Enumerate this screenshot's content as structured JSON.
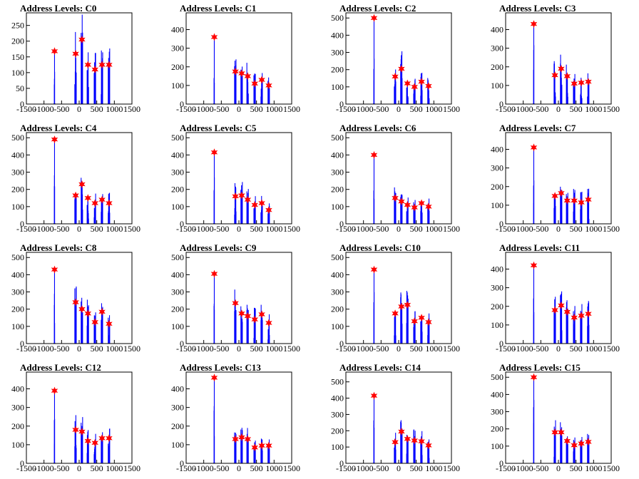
{
  "colors": {
    "histogram": "#0000ff",
    "peak_marker": "#ff0000",
    "axis": "#000000"
  },
  "chart_data": [
    {
      "type": "bar",
      "title": "Address Levels: C0",
      "xlim": [
        -1500,
        1500
      ],
      "ylim": [
        0,
        290
      ],
      "yticks": [
        0,
        50,
        100,
        150,
        200,
        250
      ],
      "xticks": [
        -1500,
        -1000,
        -500,
        0,
        500,
        1000,
        1500
      ],
      "tick_labels": [
        "-1500",
        "-1000",
        "-500",
        "0",
        "500",
        "1000",
        "1500"
      ],
      "peaks": [
        {
          "x": -700,
          "y": 168
        },
        {
          "x": -100,
          "y": 160
        },
        {
          "x": 80,
          "y": 205
        },
        {
          "x": 250,
          "y": 125
        },
        {
          "x": 450,
          "y": 110
        },
        {
          "x": 650,
          "y": 125
        },
        {
          "x": 850,
          "y": 125
        }
      ]
    },
    {
      "type": "bar",
      "title": "Address Levels: C1",
      "xlim": [
        -1500,
        1500
      ],
      "ylim": [
        0,
        490
      ],
      "yticks": [
        0,
        100,
        200,
        300,
        400
      ],
      "xticks": [
        -1500,
        -1000,
        -500,
        0,
        500,
        1000,
        1500
      ],
      "tick_labels": [
        "-1500",
        "-1000",
        "-500",
        "0",
        "500",
        "1000",
        "1500"
      ],
      "peaks": [
        {
          "x": -700,
          "y": 360
        },
        {
          "x": -100,
          "y": 175
        },
        {
          "x": 80,
          "y": 165
        },
        {
          "x": 250,
          "y": 150
        },
        {
          "x": 450,
          "y": 110
        },
        {
          "x": 650,
          "y": 130
        },
        {
          "x": 850,
          "y": 100
        }
      ]
    },
    {
      "type": "bar",
      "title": "Address Levels: C2",
      "xlim": [
        -1500,
        1500
      ],
      "ylim": [
        0,
        530
      ],
      "yticks": [
        0,
        100,
        200,
        300,
        400,
        500
      ],
      "xticks": [
        -1500,
        -1000,
        -500,
        0,
        500,
        1000,
        1500
      ],
      "tick_labels": [
        "-1500",
        "-1000",
        "-500",
        "0",
        "500",
        "1000",
        "1500"
      ],
      "peaks": [
        {
          "x": -700,
          "y": 500
        },
        {
          "x": -100,
          "y": 160
        },
        {
          "x": 80,
          "y": 205
        },
        {
          "x": 250,
          "y": 120
        },
        {
          "x": 450,
          "y": 100
        },
        {
          "x": 650,
          "y": 130
        },
        {
          "x": 850,
          "y": 105
        }
      ]
    },
    {
      "type": "bar",
      "title": "Address Levels: C3",
      "xlim": [
        -1500,
        1500
      ],
      "ylim": [
        0,
        490
      ],
      "yticks": [
        0,
        100,
        200,
        300,
        400
      ],
      "xticks": [
        -1500,
        -1000,
        -500,
        0,
        500,
        1000,
        1500
      ],
      "tick_labels": [
        "-1500",
        "-1000",
        "-500",
        "0",
        "500",
        "1000",
        "1500"
      ],
      "peaks": [
        {
          "x": -700,
          "y": 430
        },
        {
          "x": -100,
          "y": 155
        },
        {
          "x": 80,
          "y": 190
        },
        {
          "x": 250,
          "y": 150
        },
        {
          "x": 450,
          "y": 110
        },
        {
          "x": 650,
          "y": 115
        },
        {
          "x": 850,
          "y": 120
        }
      ]
    },
    {
      "type": "bar",
      "title": "Address Levels: C4",
      "xlim": [
        -1500,
        1500
      ],
      "ylim": [
        0,
        530
      ],
      "yticks": [
        0,
        100,
        200,
        300,
        400,
        500
      ],
      "xticks": [
        -1500,
        -1000,
        -500,
        0,
        500,
        1000,
        1500
      ],
      "tick_labels": [
        "-1500",
        "-1000",
        "-500",
        "0",
        "500",
        "1000",
        "1500"
      ],
      "peaks": [
        {
          "x": -700,
          "y": 490
        },
        {
          "x": -100,
          "y": 165
        },
        {
          "x": 80,
          "y": 230
        },
        {
          "x": 250,
          "y": 150
        },
        {
          "x": 450,
          "y": 120
        },
        {
          "x": 650,
          "y": 140
        },
        {
          "x": 850,
          "y": 120
        }
      ]
    },
    {
      "type": "bar",
      "title": "Address Levels: C5",
      "xlim": [
        -1500,
        1500
      ],
      "ylim": [
        0,
        530
      ],
      "yticks": [
        0,
        100,
        200,
        300,
        400,
        500
      ],
      "xticks": [
        -1500,
        -1000,
        -500,
        0,
        500,
        1000,
        1500
      ],
      "tick_labels": [
        "-1500",
        "-1000",
        "-500",
        "0",
        "500",
        "1000",
        "1500"
      ],
      "peaks": [
        {
          "x": -700,
          "y": 415
        },
        {
          "x": -100,
          "y": 160
        },
        {
          "x": 80,
          "y": 165
        },
        {
          "x": 250,
          "y": 140
        },
        {
          "x": 450,
          "y": 110
        },
        {
          "x": 650,
          "y": 120
        },
        {
          "x": 850,
          "y": 80
        }
      ]
    },
    {
      "type": "bar",
      "title": "Address Levels: C6",
      "xlim": [
        -1500,
        1500
      ],
      "ylim": [
        0,
        530
      ],
      "yticks": [
        0,
        100,
        200,
        300,
        400,
        500
      ],
      "xticks": [
        -1500,
        -1000,
        -500,
        0,
        500,
        1000,
        1500
      ],
      "tick_labels": [
        "-1500",
        "-1000",
        "-500",
        "0",
        "500",
        "1000",
        "1500"
      ],
      "peaks": [
        {
          "x": -700,
          "y": 400
        },
        {
          "x": -100,
          "y": 150
        },
        {
          "x": 80,
          "y": 130
        },
        {
          "x": 250,
          "y": 110
        },
        {
          "x": 450,
          "y": 95
        },
        {
          "x": 650,
          "y": 120
        },
        {
          "x": 850,
          "y": 100
        }
      ]
    },
    {
      "type": "bar",
      "title": "Address Levels: C7",
      "xlim": [
        -1500,
        1500
      ],
      "ylim": [
        0,
        490
      ],
      "yticks": [
        0,
        100,
        200,
        300,
        400
      ],
      "xticks": [
        -1500,
        -1000,
        -500,
        0,
        500,
        1000,
        1500
      ],
      "tick_labels": [
        "-1500",
        "-1000",
        "-500",
        "0",
        "500",
        "1000",
        "1500"
      ],
      "peaks": [
        {
          "x": -700,
          "y": 410
        },
        {
          "x": -100,
          "y": 150
        },
        {
          "x": 80,
          "y": 165
        },
        {
          "x": 250,
          "y": 125
        },
        {
          "x": 450,
          "y": 125
        },
        {
          "x": 650,
          "y": 115
        },
        {
          "x": 850,
          "y": 130
        }
      ]
    },
    {
      "type": "bar",
      "title": "Address Levels: C8",
      "xlim": [
        -1500,
        1500
      ],
      "ylim": [
        0,
        530
      ],
      "yticks": [
        0,
        100,
        200,
        300,
        400,
        500
      ],
      "xticks": [
        -1500,
        -1000,
        -500,
        0,
        500,
        1000,
        1500
      ],
      "tick_labels": [
        "-1500",
        "-1000",
        "-500",
        "0",
        "500",
        "1000",
        "1500"
      ],
      "peaks": [
        {
          "x": -700,
          "y": 430
        },
        {
          "x": -100,
          "y": 240
        },
        {
          "x": 80,
          "y": 200
        },
        {
          "x": 250,
          "y": 175
        },
        {
          "x": 450,
          "y": 125
        },
        {
          "x": 650,
          "y": 185
        },
        {
          "x": 850,
          "y": 115
        }
      ]
    },
    {
      "type": "bar",
      "title": "Address Levels: C9",
      "xlim": [
        -1500,
        1500
      ],
      "ylim": [
        0,
        530
      ],
      "yticks": [
        0,
        100,
        200,
        300,
        400,
        500
      ],
      "xticks": [
        -1500,
        -1000,
        -500,
        0,
        500,
        1000,
        1500
      ],
      "tick_labels": [
        "-1500",
        "-1000",
        "-500",
        "0",
        "500",
        "1000",
        "1500"
      ],
      "peaks": [
        {
          "x": -700,
          "y": 405
        },
        {
          "x": -100,
          "y": 235
        },
        {
          "x": 80,
          "y": 175
        },
        {
          "x": 250,
          "y": 160
        },
        {
          "x": 450,
          "y": 140
        },
        {
          "x": 650,
          "y": 170
        },
        {
          "x": 850,
          "y": 120
        }
      ]
    },
    {
      "type": "bar",
      "title": "Address Levels: C10",
      "xlim": [
        -1500,
        1500
      ],
      "ylim": [
        0,
        530
      ],
      "yticks": [
        0,
        100,
        200,
        300,
        400,
        500
      ],
      "xticks": [
        -1500,
        -1000,
        -500,
        0,
        500,
        1000,
        1500
      ],
      "tick_labels": [
        "-1500",
        "-1000",
        "-500",
        "0",
        "500",
        "1000",
        "1500"
      ],
      "peaks": [
        {
          "x": -700,
          "y": 430
        },
        {
          "x": -100,
          "y": 175
        },
        {
          "x": 80,
          "y": 215
        },
        {
          "x": 250,
          "y": 225
        },
        {
          "x": 450,
          "y": 130
        },
        {
          "x": 650,
          "y": 150
        },
        {
          "x": 850,
          "y": 125
        }
      ]
    },
    {
      "type": "bar",
      "title": "Address Levels: C11",
      "xlim": [
        -1500,
        1500
      ],
      "ylim": [
        0,
        490
      ],
      "yticks": [
        0,
        100,
        200,
        300,
        400
      ],
      "xticks": [
        -1500,
        -1000,
        -500,
        0,
        500,
        1000,
        1500
      ],
      "tick_labels": [
        "-1500",
        "-1000",
        "-500",
        "0",
        "500",
        "1000",
        "1500"
      ],
      "peaks": [
        {
          "x": -700,
          "y": 420
        },
        {
          "x": -100,
          "y": 180
        },
        {
          "x": 80,
          "y": 205
        },
        {
          "x": 250,
          "y": 170
        },
        {
          "x": 450,
          "y": 140
        },
        {
          "x": 650,
          "y": 150
        },
        {
          "x": 850,
          "y": 160
        }
      ]
    },
    {
      "type": "bar",
      "title": "Address Levels: C12",
      "xlim": [
        -1500,
        1500
      ],
      "ylim": [
        0,
        490
      ],
      "yticks": [
        0,
        100,
        200,
        300,
        400
      ],
      "xticks": [
        -1500,
        -1000,
        -500,
        0,
        500,
        1000,
        1500
      ],
      "tick_labels": [
        "-1500",
        "-1000",
        "-500",
        "0",
        "500",
        "1000",
        "1500"
      ],
      "peaks": [
        {
          "x": -700,
          "y": 390
        },
        {
          "x": -100,
          "y": 180
        },
        {
          "x": 80,
          "y": 170
        },
        {
          "x": 250,
          "y": 120
        },
        {
          "x": 450,
          "y": 110
        },
        {
          "x": 650,
          "y": 135
        },
        {
          "x": 850,
          "y": 135
        }
      ]
    },
    {
      "type": "bar",
      "title": "Address Levels: C13",
      "xlim": [
        -1500,
        1500
      ],
      "ylim": [
        0,
        490
      ],
      "yticks": [
        0,
        100,
        200,
        300,
        400
      ],
      "xticks": [
        -1500,
        -1000,
        -500,
        0,
        500,
        1000,
        1500
      ],
      "tick_labels": [
        "-1500",
        "-1000",
        "-500",
        "0",
        "500",
        "1000",
        "1500"
      ],
      "peaks": [
        {
          "x": -700,
          "y": 460
        },
        {
          "x": -100,
          "y": 130
        },
        {
          "x": 80,
          "y": 140
        },
        {
          "x": 250,
          "y": 130
        },
        {
          "x": 450,
          "y": 85
        },
        {
          "x": 650,
          "y": 95
        },
        {
          "x": 850,
          "y": 95
        }
      ]
    },
    {
      "type": "bar",
      "title": "Address Levels: C14",
      "xlim": [
        -1500,
        1500
      ],
      "ylim": [
        0,
        560
      ],
      "yticks": [
        0,
        100,
        200,
        300,
        400,
        500
      ],
      "xticks": [
        -1500,
        -1000,
        -500,
        0,
        500,
        1000,
        1500
      ],
      "tick_labels": [
        "-1500",
        "-1000",
        "-500",
        "0",
        "500",
        "1000",
        "1500"
      ],
      "peaks": [
        {
          "x": -700,
          "y": 415
        },
        {
          "x": -100,
          "y": 130
        },
        {
          "x": 80,
          "y": 195
        },
        {
          "x": 250,
          "y": 150
        },
        {
          "x": 450,
          "y": 140
        },
        {
          "x": 650,
          "y": 135
        },
        {
          "x": 850,
          "y": 110
        }
      ]
    },
    {
      "type": "bar",
      "title": "Address Levels: C15",
      "xlim": [
        -1500,
        1500
      ],
      "ylim": [
        0,
        530
      ],
      "yticks": [
        0,
        100,
        200,
        300,
        400,
        500
      ],
      "xticks": [
        -1500,
        -1000,
        -500,
        0,
        500,
        1000,
        1500
      ],
      "tick_labels": [
        "-1500",
        "-1000",
        "-500",
        "0",
        "500",
        "1000",
        "1500"
      ],
      "peaks": [
        {
          "x": -700,
          "y": 500
        },
        {
          "x": -100,
          "y": 180
        },
        {
          "x": 80,
          "y": 180
        },
        {
          "x": 250,
          "y": 130
        },
        {
          "x": 450,
          "y": 105
        },
        {
          "x": 650,
          "y": 115
        },
        {
          "x": 850,
          "y": 125
        }
      ]
    }
  ]
}
